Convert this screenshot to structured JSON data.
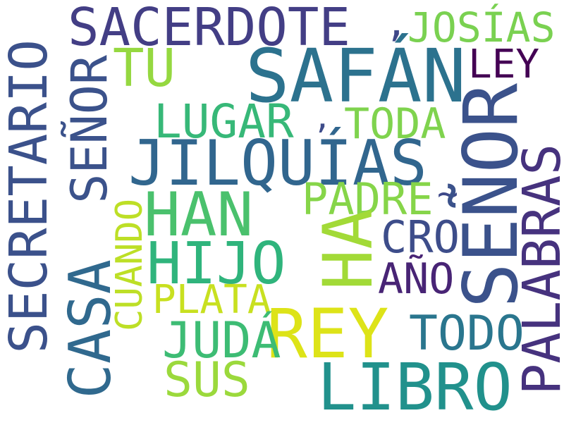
{
  "words": {
    "sacerdote": {
      "text": "SACERDOTE",
      "color": "#433e85"
    },
    "comma_a": {
      "text": ",",
      "color": "#3f4788"
    },
    "josias": {
      "text": "JOSÍAS",
      "color": "#7ad151"
    },
    "safan": {
      "text": "SAFÁN",
      "color": "#2c728e"
    },
    "tu": {
      "text": "TU",
      "color": "#95d840"
    },
    "ley": {
      "text": "LEY",
      "color": "#440154"
    },
    "lugar": {
      "text": "LUGAR",
      "color": "#37b878"
    },
    "comma_b": {
      "text": ",",
      "color": "#3e4c8a"
    },
    "toda": {
      "text": "TODA",
      "color": "#7fd34e"
    },
    "jilquias": {
      "text": "JILQUÍAS",
      "color": "#31668e"
    },
    "secretario": {
      "text": "SECRETARIO",
      "color": "#3b518b"
    },
    "senor_left": {
      "text": "SEÑOR",
      "color": "#3b528b"
    },
    "casa": {
      "text": "CASA",
      "color": "#30698e"
    },
    "cuando": {
      "text": "CUANDO",
      "color": "#bddf26"
    },
    "han": {
      "text": "HAN",
      "color": "#4ac16d"
    },
    "hijo": {
      "text": "HIJO",
      "color": "#2fb47c"
    },
    "padre": {
      "text": "PADRE",
      "color": "#86d549"
    },
    "tilde": {
      "text": "~",
      "color": "#3e4989"
    },
    "ha": {
      "text": "HA",
      "color": "#a2da37"
    },
    "cro": {
      "text": "CRO",
      "color": "#3d4d8a"
    },
    "senor_right": {
      "text": "SEÑOR",
      "color": "#3b528b"
    },
    "palabras": {
      "text": "PALABRAS",
      "color": "#46327e"
    },
    "ano": {
      "text": "AÑO",
      "color": "#482475"
    },
    "plata": {
      "text": "PLATA",
      "color": "#c8e020"
    },
    "rey": {
      "text": "REY",
      "color": "#dde318"
    },
    "juda": {
      "text": "JUDÁ",
      "color": "#3dbc74"
    },
    "todo": {
      "text": "TODO",
      "color": "#2a768e"
    },
    "sus": {
      "text": "SUS",
      "color": "#9bd93c"
    },
    "libro": {
      "text": "LIBRO",
      "color": "#21918c"
    }
  }
}
